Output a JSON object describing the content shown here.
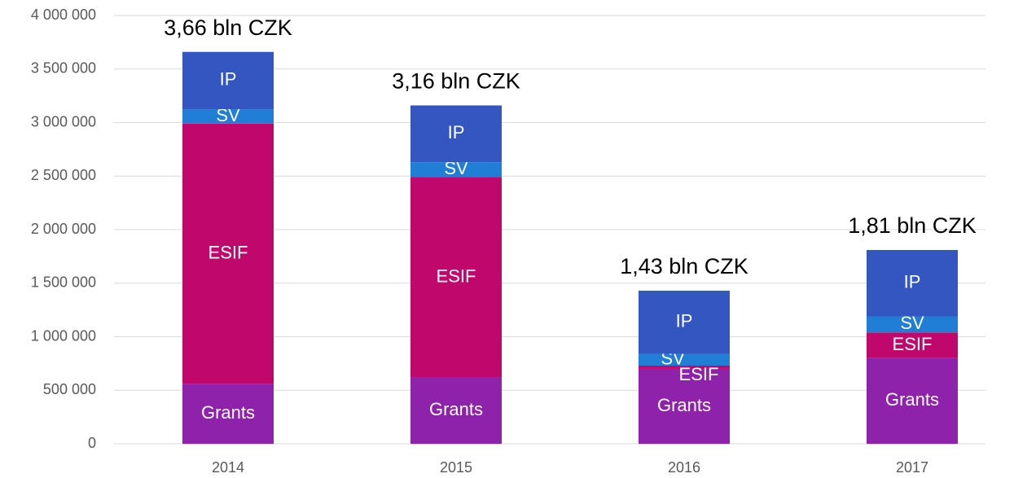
{
  "chart_data": {
    "type": "stacked_bar",
    "categories": [
      "2014",
      "2015",
      "2016",
      "2017"
    ],
    "series": [
      {
        "name": "Grants",
        "color": "#8e22aa",
        "values": [
          560000,
          620000,
          700000,
          800000
        ]
      },
      {
        "name": "ESIF",
        "color": "#c0086c",
        "values": [
          2430000,
          1870000,
          30000,
          240000
        ]
      },
      {
        "name": "SV",
        "color": "#217ed6",
        "values": [
          135000,
          140000,
          110000,
          150000
        ]
      },
      {
        "name": "IP",
        "color": "#3356c1",
        "values": [
          535000,
          530000,
          590000,
          620000
        ]
      }
    ],
    "annotations": [
      "3,66 bln CZK",
      "3,16 bln CZK",
      "1,43 bln CZK",
      "1,81 bln CZK"
    ],
    "ylim": [
      0,
      4000000
    ],
    "yticks": [
      0,
      {
        "value": 500000,
        "label": "500 000"
      },
      {
        "value": 1000000,
        "label": "1 000 000"
      },
      {
        "value": 1500000,
        "label": "1 500 000"
      },
      {
        "value": 2000000,
        "label": "2 000 000"
      },
      {
        "value": 2500000,
        "label": "2 500 000"
      },
      {
        "value": 3000000,
        "label": "3 000 000"
      },
      {
        "value": 3500000,
        "label": "3 500 000"
      },
      {
        "value": 4000000,
        "label": "4 000 000"
      }
    ],
    "grid": true
  }
}
